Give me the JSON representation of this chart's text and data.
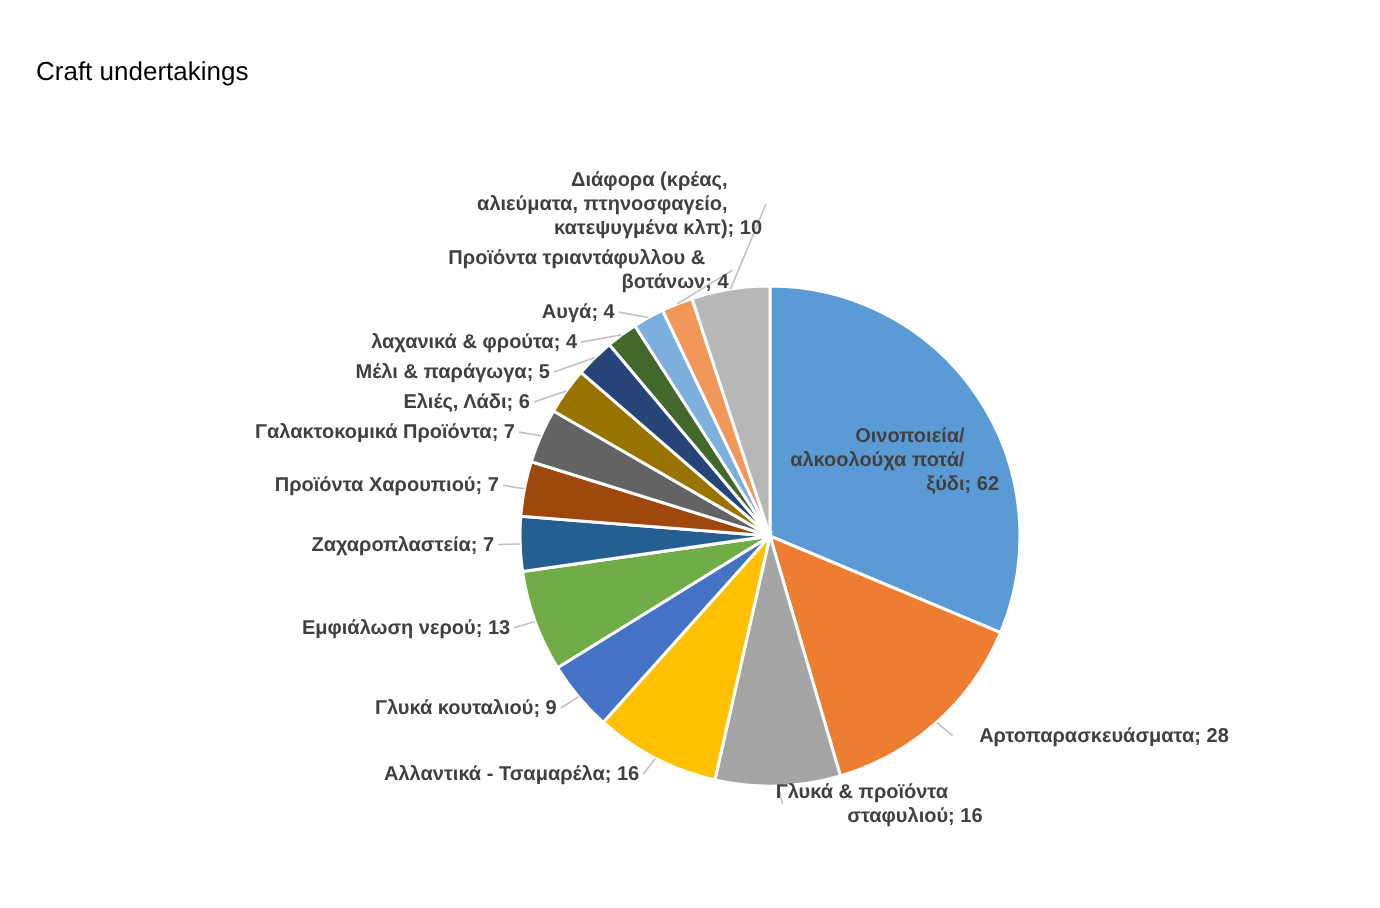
{
  "chart_data": {
    "type": "pie",
    "title": "Craft undertakings",
    "categories": [
      "Οινοποιεία/αλκοολούχα ποτά/ ξύδι",
      "Αρτοπαρασκευάσματα",
      "Γλυκά & προϊόντα σταφυλιού",
      "Αλλαντικά - Τσαμαρέλα",
      "Γλυκά κουταλιού",
      "Εμφιάλωση νερού",
      "Ζαχαροπλαστεία",
      "Προϊόντα Χαρουπιού",
      "Γαλακτοκομικά Προϊόντα",
      "Ελιές, Λάδι",
      "Μέλι & παράγωγα",
      "λαχανικά & φρούτα",
      "Αυγά",
      "Προϊόντα τριαντάφυλλου & βοτάνων",
      "Διάφορα (κρέας, αλιεύματα, πτηνοσφαγείο, κατεψυγμένα κλπ)"
    ],
    "values": [
      62,
      28,
      16,
      16,
      9,
      13,
      7,
      7,
      7,
      6,
      5,
      4,
      4,
      4,
      10
    ],
    "colors": [
      "#5b9bd5",
      "#ed7d31",
      "#a5a5a5",
      "#ffc000",
      "#4472c4",
      "#70ad47",
      "#255e91",
      "#9e480e",
      "#636363",
      "#997300",
      "#264478",
      "#43682b",
      "#7cafdd",
      "#f1975a",
      "#b7b7b7"
    ],
    "value_labels": [
      "; 62",
      "; 28",
      "; 16",
      "; 16",
      "; 9",
      "; 13",
      "; 7",
      "; 7",
      "; 7",
      "; 6",
      "; 5",
      "; 4",
      "; 4",
      "; 4",
      "; 10"
    ]
  }
}
